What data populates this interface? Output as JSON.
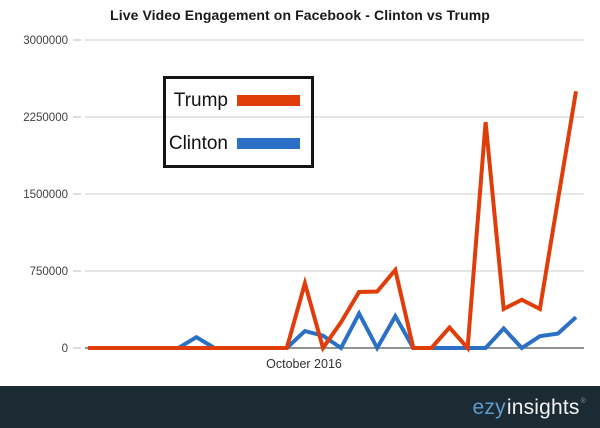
{
  "title": "Live Video Engagement on Facebook - Clinton vs Trump",
  "x_axis_label": "October 2016",
  "legend": {
    "items": [
      {
        "label": "Trump",
        "color": "#DF3D0A"
      },
      {
        "label": "Clinton",
        "color": "#2B70C4"
      }
    ]
  },
  "footer": {
    "brand_first": "ezy",
    "brand_second": "insights",
    "trademark_mark": "®",
    "background_color": "#1C2B33",
    "brand_first_color": "#5C9BCC",
    "brand_second_color": "#F2F2F2"
  },
  "chart_data": {
    "type": "line",
    "title": "Live Video Engagement on Facebook - Clinton vs Trump",
    "xlabel": "October 2016",
    "ylabel": "",
    "ylim": [
      0,
      3000000
    ],
    "y_ticks": [
      0,
      750000,
      1500000,
      2250000,
      3000000
    ],
    "y_tick_labels": [
      "0",
      "750000",
      "1500000",
      "2250000",
      "3000000"
    ],
    "grid": true,
    "zero_line": true,
    "legend_position": "top-left-inset",
    "x_note": "28 evenly spaced points across October 2016 (no individual date labels shown)",
    "series": [
      {
        "name": "Trump",
        "color": "#DF3D0A",
        "values": [
          0,
          0,
          0,
          0,
          0,
          0,
          0,
          0,
          0,
          0,
          0,
          0,
          630000,
          0,
          250000,
          545000,
          550000,
          760000,
          0,
          0,
          200000,
          0,
          2200000,
          380000,
          470000,
          380000,
          1440000,
          2500000
        ]
      },
      {
        "name": "Clinton",
        "color": "#2B70C4",
        "values": [
          0,
          0,
          0,
          0,
          0,
          0,
          105000,
          0,
          0,
          0,
          0,
          0,
          165000,
          120000,
          0,
          335000,
          0,
          310000,
          0,
          0,
          0,
          0,
          0,
          190000,
          0,
          115000,
          140000,
          300000
        ]
      }
    ],
    "style": {
      "gridline_color": "#CCCCCC",
      "zero_line_color": "#6E6E6E",
      "line_width": 4
    }
  }
}
